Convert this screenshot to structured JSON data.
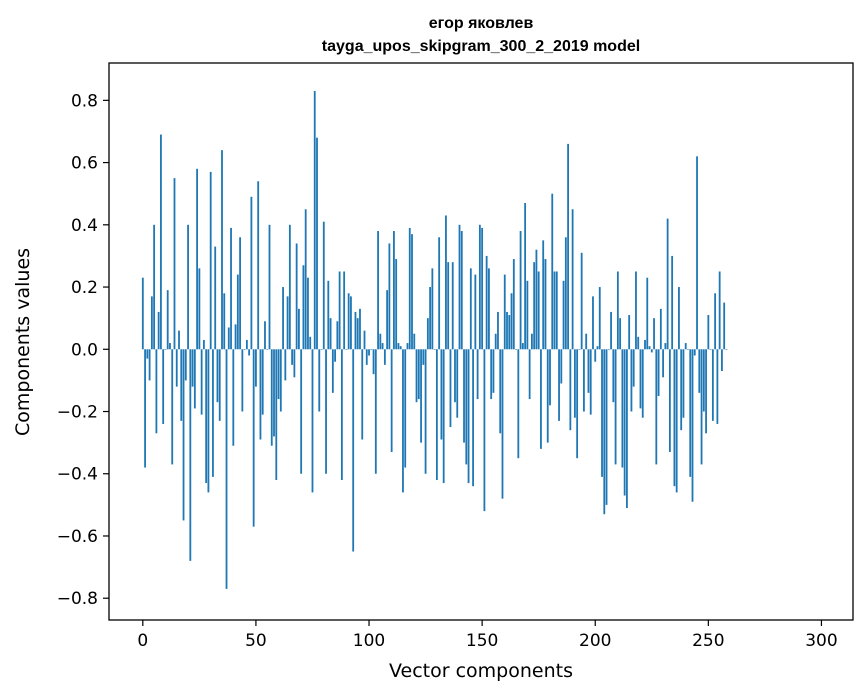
{
  "chart_data": {
    "type": "bar",
    "title": "егор яковлев",
    "subtitle": "tayga_upos_skipgram_300_2_2019 model",
    "xlabel": "Vector components",
    "ylabel": "Components values",
    "xlim": [
      -14.95,
      313.95
    ],
    "ylim": [
      -0.87,
      0.92
    ],
    "x_ticks": [
      0,
      50,
      100,
      150,
      200,
      250,
      300
    ],
    "x_tick_labels": [
      "0",
      "50",
      "100",
      "150",
      "200",
      "250",
      "300"
    ],
    "y_ticks": [
      -0.8,
      -0.6,
      -0.4,
      -0.2,
      0.0,
      0.2,
      0.4,
      0.6,
      0.8
    ],
    "y_tick_labels": [
      "−0.8",
      "−0.6",
      "−0.4",
      "−0.2",
      "0.0",
      "0.2",
      "0.4",
      "0.6",
      "0.8"
    ],
    "bar_color": "#1f77b4",
    "grid": false,
    "values": [
      0.23,
      -0.38,
      -0.03,
      -0.1,
      0.17,
      0.4,
      -0.27,
      0.12,
      0.69,
      -0.24,
      0.0,
      0.19,
      0.02,
      -0.37,
      0.55,
      -0.12,
      0.06,
      -0.23,
      -0.55,
      -0.1,
      0.4,
      -0.68,
      -0.12,
      -0.19,
      0.58,
      0.26,
      -0.21,
      0.03,
      -0.43,
      -0.46,
      0.57,
      -0.41,
      0.33,
      -0.17,
      -0.23,
      0.64,
      0.18,
      -0.77,
      0.07,
      0.39,
      -0.31,
      0.08,
      0.24,
      0.36,
      -0.2,
      0.0,
      0.03,
      -0.02,
      0.49,
      -0.57,
      -0.12,
      0.54,
      -0.29,
      -0.21,
      0.09,
      0.0,
      0.4,
      -0.31,
      -0.28,
      -0.42,
      -0.16,
      -0.2,
      0.2,
      -0.1,
      0.17,
      0.4,
      -0.05,
      -0.09,
      0.34,
      0.13,
      -0.4,
      0.27,
      0.45,
      0.23,
      0.04,
      -0.46,
      0.83,
      0.68,
      -0.2,
      0.0,
      0.41,
      -0.4,
      0.22,
      0.1,
      -0.14,
      -0.04,
      0.09,
      0.25,
      -0.42,
      0.25,
      0.0,
      0.18,
      0.17,
      -0.65,
      0.12,
      0.1,
      0.13,
      -0.29,
      0.06,
      -0.05,
      -0.02,
      0.0,
      -0.08,
      -0.4,
      0.38,
      0.05,
      0.02,
      -0.05,
      0.19,
      0.34,
      -0.33,
      0.38,
      0.29,
      0.02,
      0.01,
      -0.46,
      -0.38,
      0.02,
      0.39,
      0.37,
      0.05,
      -0.17,
      -0.16,
      -0.3,
      -0.05,
      -0.4,
      0.1,
      0.2,
      0.26,
      0.0,
      -0.42,
      0.36,
      -0.29,
      -0.43,
      0.43,
      0.28,
      -0.25,
      0.28,
      -0.17,
      -0.22,
      0.4,
      0.38,
      -0.3,
      -0.37,
      -0.43,
      0.26,
      -0.44,
      0.24,
      -0.16,
      0.4,
      0.39,
      -0.52,
      0.3,
      0.26,
      -0.16,
      -0.14,
      0.05,
      0.12,
      -0.27,
      -0.48,
      0.24,
      0.12,
      0.11,
      0.18,
      0.29,
      0.0,
      -0.35,
      0.38,
      0.02,
      0.47,
      0.22,
      -0.16,
      0.05,
      0.28,
      0.32,
      0.25,
      -0.32,
      0.35,
      0.29,
      -0.3,
      -0.18,
      0.5,
      0.25,
      0.25,
      -0.23,
      -0.11,
      0.22,
      0.36,
      0.66,
      -0.26,
      0.45,
      -0.22,
      -0.35,
      0.0,
      0.31,
      -0.2,
      0.05,
      -0.14,
      -0.21,
      0.17,
      -0.04,
      0.01,
      0.2,
      -0.41,
      -0.53,
      -0.5,
      0.0,
      0.12,
      -0.17,
      -0.37,
      0.25,
      0.1,
      -0.38,
      -0.47,
      -0.51,
      0.11,
      -0.2,
      -0.12,
      0.25,
      0.04,
      -0.19,
      -0.22,
      0.03,
      0.23,
      0.01,
      -0.01,
      0.1,
      -0.37,
      -0.15,
      0.13,
      -0.09,
      0.02,
      0.42,
      -0.33,
      0.3,
      -0.44,
      -0.46,
      0.2,
      -0.26,
      -0.22,
      0.02,
      0.0,
      -0.41,
      -0.49,
      -0.02,
      0.62,
      -0.14,
      -0.37,
      -0.2,
      -0.27,
      0.11,
      0.0,
      -0.23,
      0.18,
      -0.24,
      0.25,
      -0.07,
      0.15,
      0.0
    ]
  }
}
